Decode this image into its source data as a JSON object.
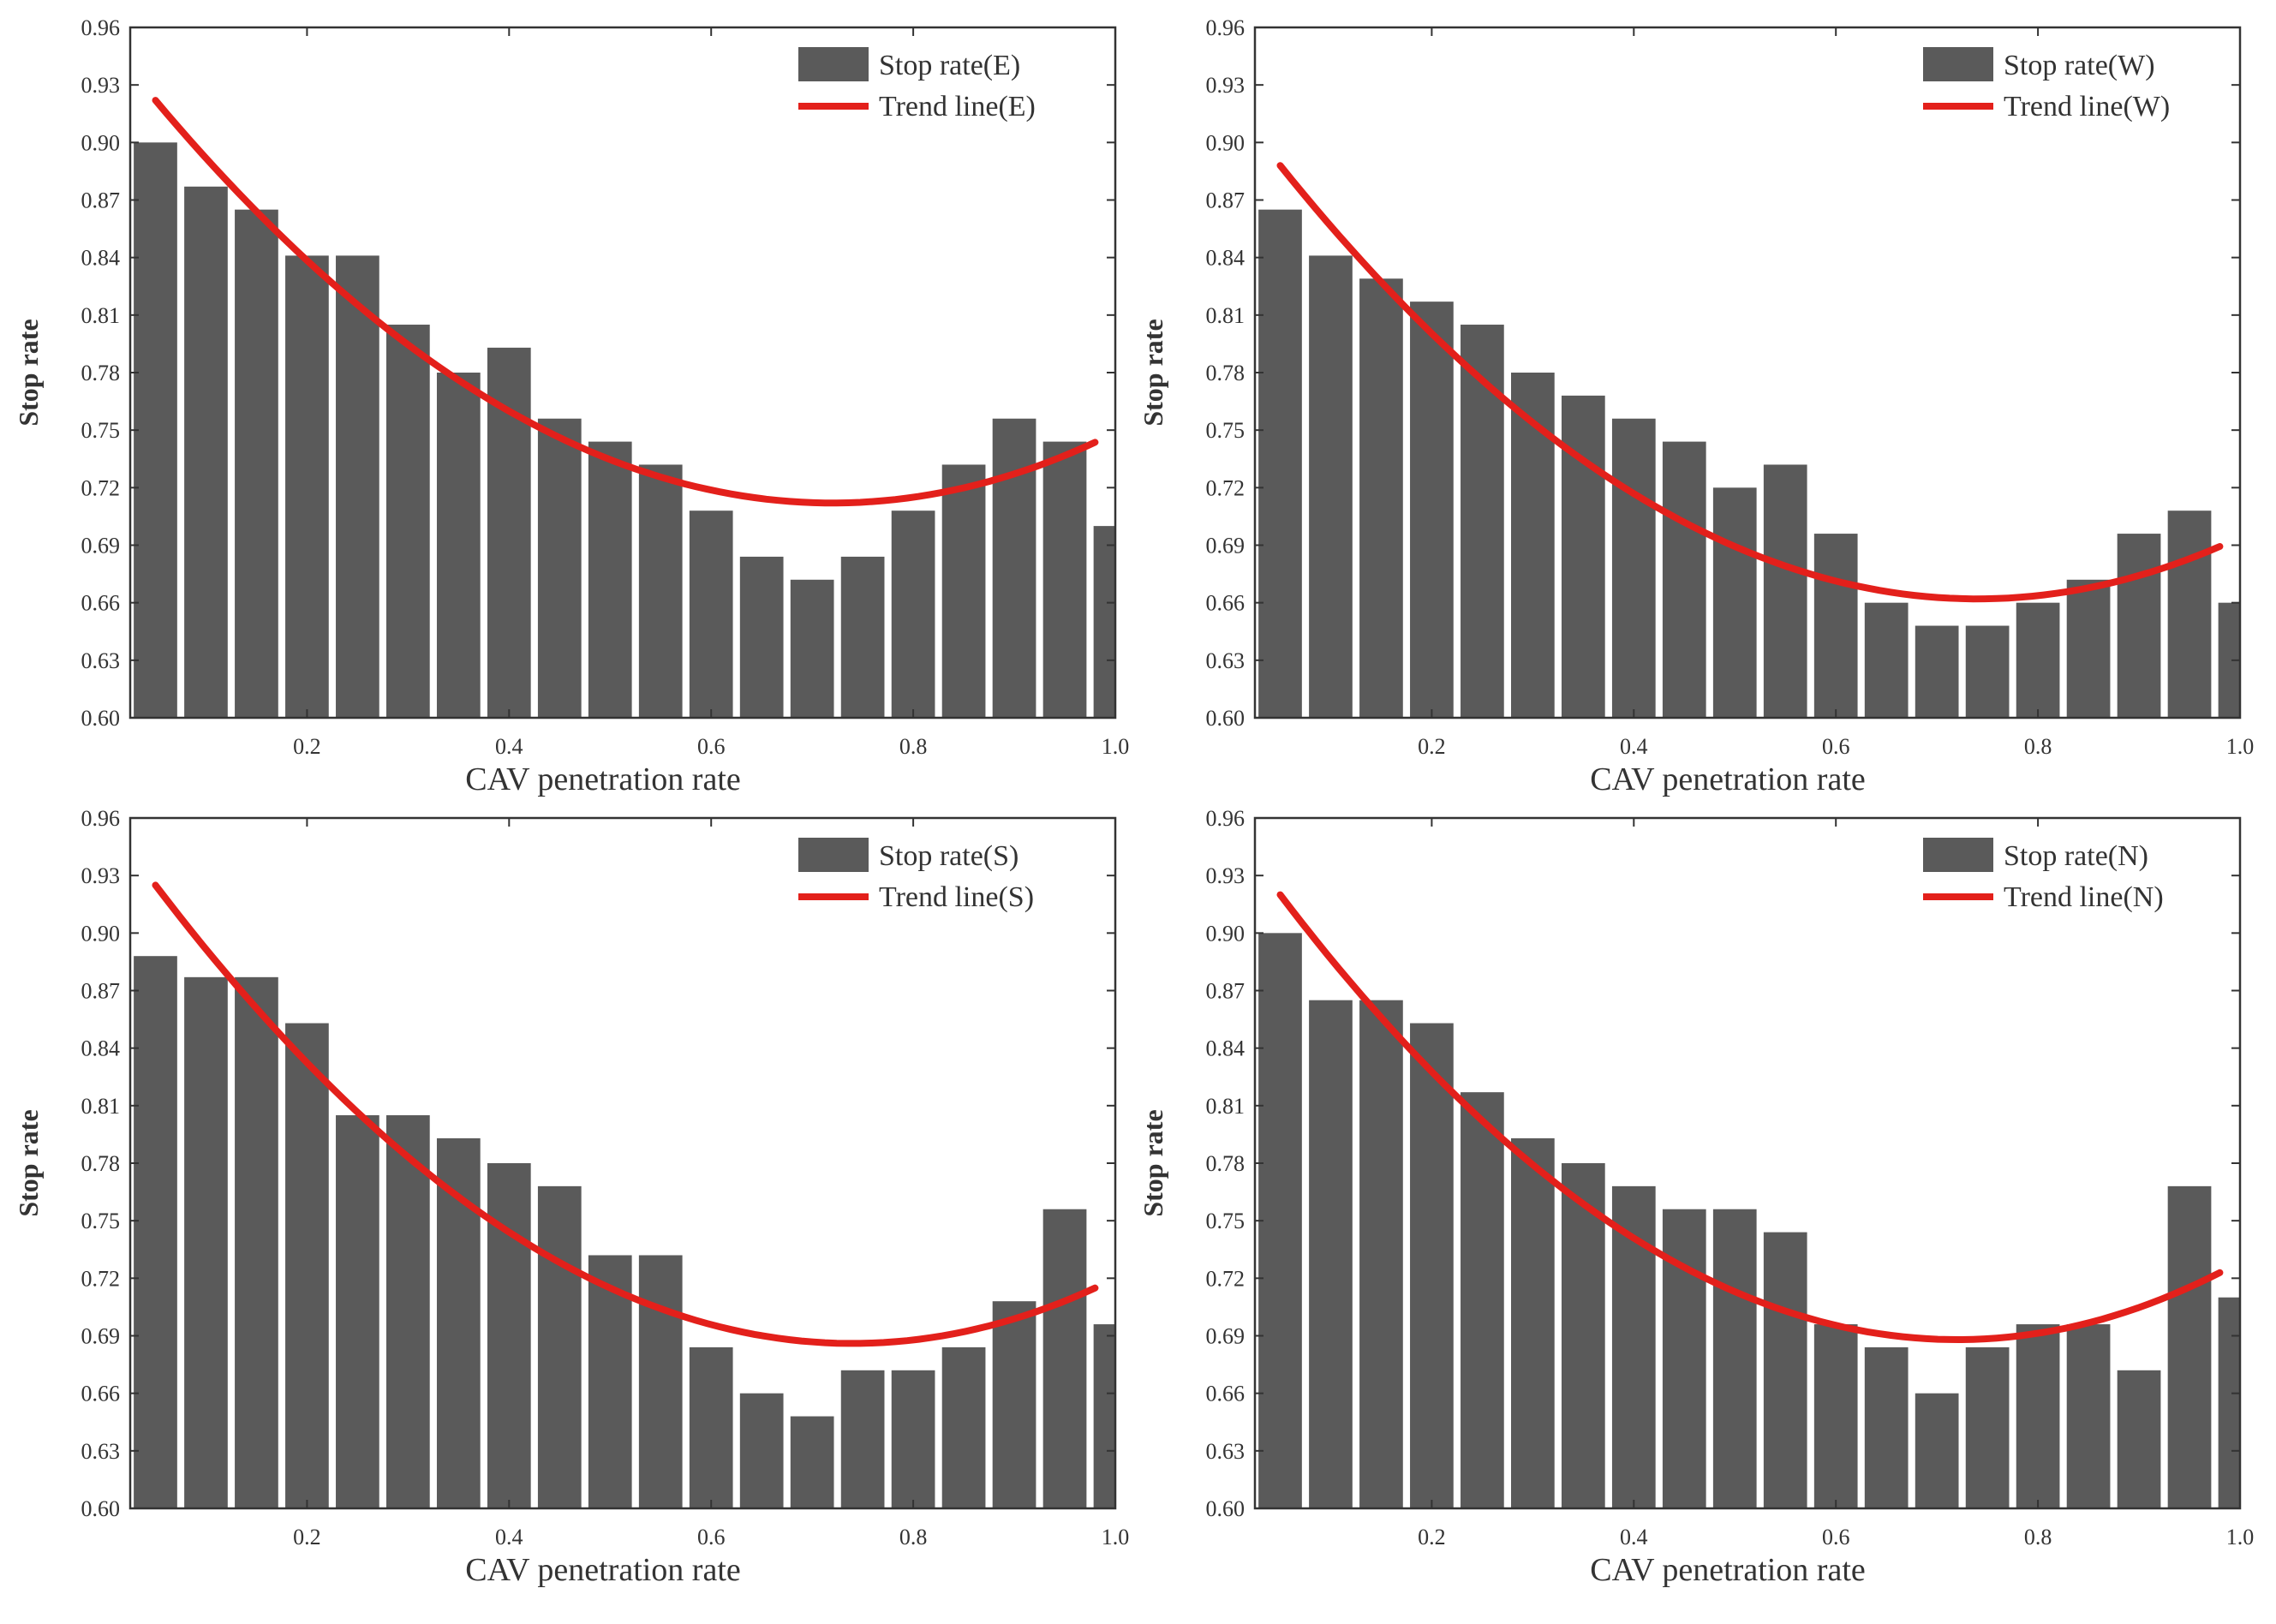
{
  "colors": {
    "bar": "#5a5a5a",
    "trend": "#e3201b",
    "axis": "#333333",
    "background": "#ffffff"
  },
  "chart_data": [
    {
      "type": "bar",
      "title": "",
      "xlabel": "CAV penetration rate",
      "ylabel": "Stop rate",
      "xlim": [
        0.025,
        1.0
      ],
      "ylim": [
        0.6,
        0.96
      ],
      "x_ticks": [
        "0.2",
        "0.4",
        "0.6",
        "0.8",
        "1.0"
      ],
      "y_ticks": [
        "0.60",
        "0.63",
        "0.66",
        "0.69",
        "0.72",
        "0.75",
        "0.78",
        "0.81",
        "0.84",
        "0.87",
        "0.90",
        "0.93",
        "0.96"
      ],
      "grid": false,
      "legend_position": "top-right",
      "legend": [
        "Stop rate(E)",
        "Trend line(E)"
      ],
      "x": [
        0.05,
        0.1,
        0.15,
        0.2,
        0.25,
        0.3,
        0.35,
        0.4,
        0.45,
        0.5,
        0.55,
        0.6,
        0.65,
        0.7,
        0.75,
        0.8,
        0.85,
        0.9,
        0.95,
        1.0
      ],
      "series": [
        {
          "name": "Stop rate(E)",
          "kind": "bar",
          "values": [
            0.9,
            0.877,
            0.865,
            0.841,
            0.841,
            0.805,
            0.78,
            0.793,
            0.756,
            0.744,
            0.732,
            0.708,
            0.684,
            0.672,
            0.684,
            0.708,
            0.732,
            0.756,
            0.744,
            0.7
          ]
        },
        {
          "name": "Trend line(E)",
          "kind": "line",
          "x_range": [
            0.05,
            0.98
          ],
          "quadratic": {
            "vertex_x": 0.72,
            "vertex_y": 0.712,
            "start_y": 0.922
          }
        }
      ]
    },
    {
      "type": "bar",
      "title": "",
      "xlabel": "CAV penetration rate",
      "ylabel": "Stop rate",
      "xlim": [
        0.025,
        1.0
      ],
      "ylim": [
        0.6,
        0.96
      ],
      "x_ticks": [
        "0.2",
        "0.4",
        "0.6",
        "0.8",
        "1.0"
      ],
      "y_ticks": [
        "0.60",
        "0.63",
        "0.66",
        "0.69",
        "0.72",
        "0.75",
        "0.78",
        "0.81",
        "0.84",
        "0.87",
        "0.90",
        "0.93",
        "0.96"
      ],
      "grid": false,
      "legend_position": "top-right",
      "legend": [
        "Stop rate(W)",
        "Trend line(W)"
      ],
      "x": [
        0.05,
        0.1,
        0.15,
        0.2,
        0.25,
        0.3,
        0.35,
        0.4,
        0.45,
        0.5,
        0.55,
        0.6,
        0.65,
        0.7,
        0.75,
        0.8,
        0.85,
        0.9,
        0.95,
        1.0
      ],
      "series": [
        {
          "name": "Stop rate(W)",
          "kind": "bar",
          "values": [
            0.865,
            0.841,
            0.829,
            0.817,
            0.805,
            0.78,
            0.768,
            0.756,
            0.744,
            0.72,
            0.732,
            0.696,
            0.66,
            0.648,
            0.648,
            0.66,
            0.672,
            0.696,
            0.708,
            0.66
          ]
        },
        {
          "name": "Trend line(W)",
          "kind": "line",
          "x_range": [
            0.05,
            0.98
          ],
          "quadratic": {
            "vertex_x": 0.74,
            "vertex_y": 0.662,
            "start_y": 0.888
          }
        }
      ]
    },
    {
      "type": "bar",
      "title": "",
      "xlabel": "CAV penetration rate",
      "ylabel": "Stop rate",
      "xlim": [
        0.025,
        1.0
      ],
      "ylim": [
        0.6,
        0.96
      ],
      "x_ticks": [
        "0.2",
        "0.4",
        "0.6",
        "0.8",
        "1.0"
      ],
      "y_ticks": [
        "0.60",
        "0.63",
        "0.66",
        "0.69",
        "0.72",
        "0.75",
        "0.78",
        "0.81",
        "0.84",
        "0.87",
        "0.90",
        "0.93",
        "0.96"
      ],
      "grid": false,
      "legend_position": "top-right",
      "legend": [
        "Stop rate(S)",
        "Trend line(S)"
      ],
      "x": [
        0.05,
        0.1,
        0.15,
        0.2,
        0.25,
        0.3,
        0.35,
        0.4,
        0.45,
        0.5,
        0.55,
        0.6,
        0.65,
        0.7,
        0.75,
        0.8,
        0.85,
        0.9,
        0.95,
        1.0
      ],
      "series": [
        {
          "name": "Stop rate(S)",
          "kind": "bar",
          "values": [
            0.888,
            0.877,
            0.877,
            0.853,
            0.805,
            0.805,
            0.793,
            0.78,
            0.768,
            0.732,
            0.732,
            0.684,
            0.66,
            0.648,
            0.672,
            0.672,
            0.684,
            0.708,
            0.756,
            0.696
          ]
        },
        {
          "name": "Trend line(S)",
          "kind": "line",
          "x_range": [
            0.05,
            0.98
          ],
          "quadratic": {
            "vertex_x": 0.74,
            "vertex_y": 0.686,
            "start_y": 0.925
          }
        }
      ]
    },
    {
      "type": "bar",
      "title": "",
      "xlabel": "CAV penetration rate",
      "ylabel": "Stop rate",
      "xlim": [
        0.025,
        1.0
      ],
      "ylim": [
        0.6,
        0.96
      ],
      "x_ticks": [
        "0.2",
        "0.4",
        "0.6",
        "0.8",
        "1.0"
      ],
      "y_ticks": [
        "0.60",
        "0.63",
        "0.66",
        "0.69",
        "0.72",
        "0.75",
        "0.78",
        "0.81",
        "0.84",
        "0.87",
        "0.90",
        "0.93",
        "0.96"
      ],
      "grid": false,
      "legend_position": "top-right",
      "legend": [
        "Stop rate(N)",
        "Trend line(N)"
      ],
      "x": [
        0.05,
        0.1,
        0.15,
        0.2,
        0.25,
        0.3,
        0.35,
        0.4,
        0.45,
        0.5,
        0.55,
        0.6,
        0.65,
        0.7,
        0.75,
        0.8,
        0.85,
        0.9,
        0.95,
        1.0
      ],
      "series": [
        {
          "name": "Stop rate(N)",
          "kind": "bar",
          "values": [
            0.9,
            0.865,
            0.865,
            0.853,
            0.817,
            0.793,
            0.78,
            0.768,
            0.756,
            0.756,
            0.744,
            0.696,
            0.684,
            0.66,
            0.684,
            0.696,
            0.696,
            0.672,
            0.768,
            0.71
          ]
        },
        {
          "name": "Trend line(N)",
          "kind": "line",
          "x_range": [
            0.05,
            0.98
          ],
          "quadratic": {
            "vertex_x": 0.72,
            "vertex_y": 0.688,
            "start_y": 0.92
          }
        }
      ]
    }
  ]
}
